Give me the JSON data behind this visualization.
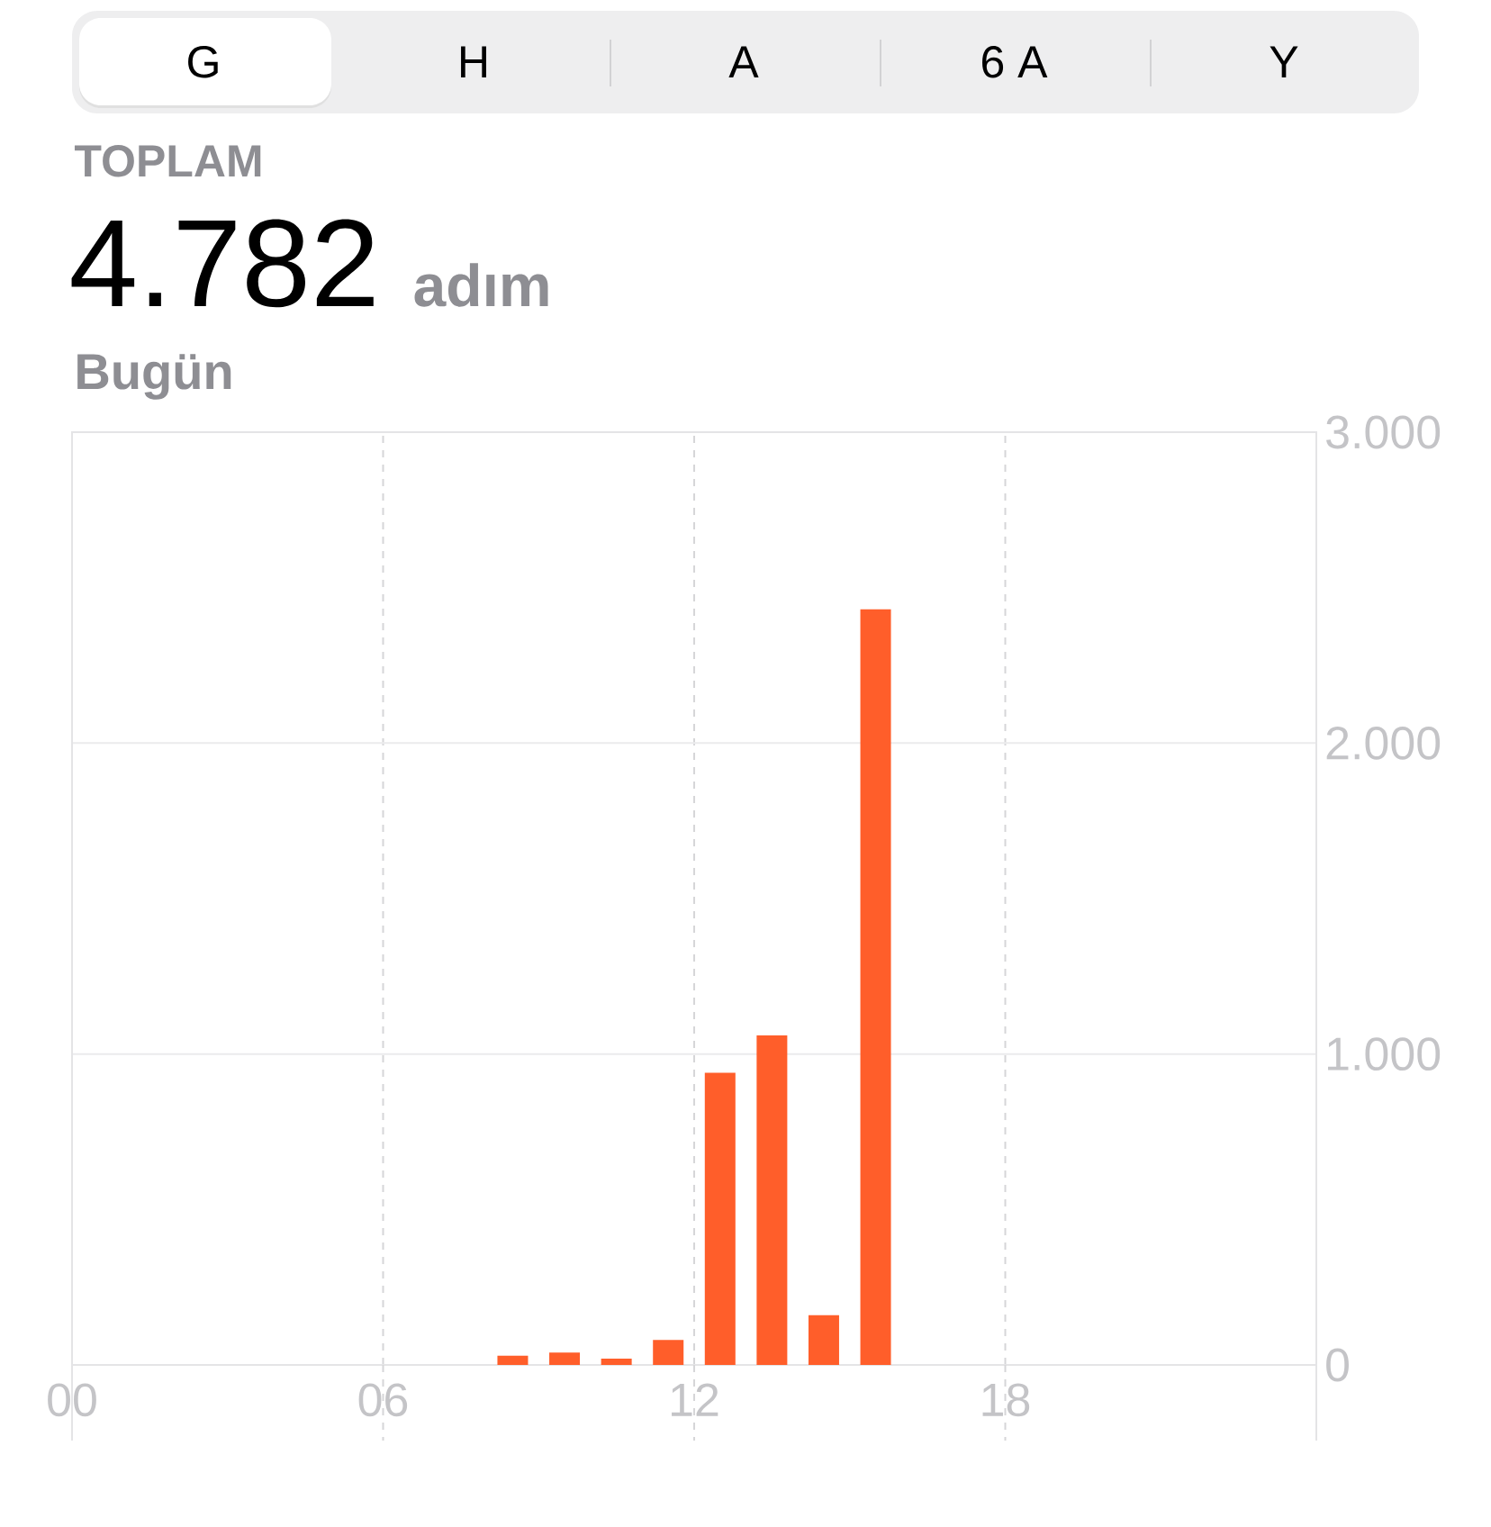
{
  "chart_data": {
    "type": "bar",
    "title": "TOPLAM",
    "subtitle": "Bugün",
    "annotations": [
      "G",
      "H",
      "A",
      "6 A",
      "Y",
      "4.782",
      "adım"
    ],
    "x": [
      8.5,
      9.5,
      10.5,
      11.5,
      12.5,
      13.5,
      14.5,
      15.5
    ],
    "values": [
      30,
      40,
      20,
      80,
      940,
      1060,
      160,
      2430
    ],
    "color": "#ff5e2a",
    "xlim": [
      0,
      24
    ],
    "xticks": [
      {
        "value": 0,
        "label": "00"
      },
      {
        "value": 6,
        "label": "06"
      },
      {
        "value": 12,
        "label": "12"
      },
      {
        "value": 18,
        "label": "18"
      }
    ],
    "ylim": [
      0,
      3000
    ],
    "yticks": [
      0,
      {
        "value": 1000,
        "label": "1.000"
      },
      {
        "value": 2000,
        "label": "2.000"
      },
      {
        "value": 3000,
        "label": "3.000"
      }
    ],
    "grid": true
  }
}
